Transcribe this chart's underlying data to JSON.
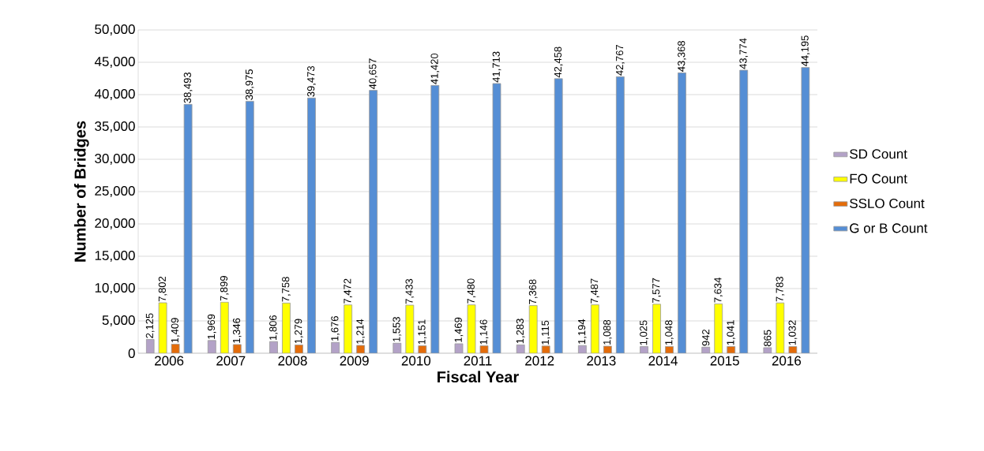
{
  "chart_data": {
    "type": "bar",
    "xlabel": "Fiscal Year",
    "ylabel": "Number of Bridges",
    "categories": [
      "2006",
      "2007",
      "2008",
      "2009",
      "2010",
      "2011",
      "2012",
      "2013",
      "2014",
      "2015",
      "2016"
    ],
    "series": [
      {
        "name": "SD Count",
        "color": "#b3a2c7",
        "values": [
          2125,
          1969,
          1806,
          1676,
          1553,
          1469,
          1283,
          1194,
          1025,
          942,
          865
        ],
        "value_labels": [
          "2,125",
          "1,969",
          "1,806",
          "1,676",
          "1,553",
          "1,469",
          "1,283",
          "1,194",
          "1,025",
          "942",
          "865"
        ]
      },
      {
        "name": "FO Count",
        "color": "#ffff00",
        "values": [
          7802,
          7899,
          7758,
          7472,
          7433,
          7480,
          7368,
          7487,
          7577,
          7634,
          7783
        ],
        "value_labels": [
          "7,802",
          "7,899",
          "7,758",
          "7,472",
          "7,433",
          "7,480",
          "7,368",
          "7,487",
          "7,577",
          "7,634",
          "7,783"
        ]
      },
      {
        "name": "SSLO Count",
        "color": "#e46c0a",
        "values": [
          1409,
          1346,
          1279,
          1214,
          1151,
          1146,
          1115,
          1088,
          1048,
          1041,
          1032
        ],
        "value_labels": [
          "1,409",
          "1,346",
          "1,279",
          "1,214",
          "1,151",
          "1,146",
          "1,115",
          "1,088",
          "1,048",
          "1,041",
          "1,032"
        ]
      },
      {
        "name": "G or B Count",
        "color": "#558ed5",
        "values": [
          38493,
          38975,
          39473,
          40657,
          41420,
          41713,
          42458,
          42767,
          43368,
          43774,
          44195
        ],
        "value_labels": [
          "38,493",
          "38,975",
          "39,473",
          "40,657",
          "41,420",
          "41,713",
          "42,458",
          "42,767",
          "43,368",
          "43,774",
          "44,195"
        ]
      }
    ],
    "ylim": [
      0,
      50000
    ],
    "yticks": [
      0,
      {
        "value": 5000,
        "label": "5,000"
      },
      {
        "value": 10000,
        "label": "10,000"
      },
      {
        "value": 15000,
        "label": "15,000"
      },
      {
        "value": 20000,
        "label": "20,000"
      },
      {
        "value": 25000,
        "label": "25,000"
      },
      {
        "value": 30000,
        "label": "30,000"
      },
      {
        "value": 35000,
        "label": "35,000"
      },
      {
        "value": 40000,
        "label": "40,000"
      },
      {
        "value": 45000,
        "label": "45,000"
      },
      {
        "value": 50000,
        "label": "50,000"
      }
    ],
    "grid": "y",
    "legend": "right"
  }
}
